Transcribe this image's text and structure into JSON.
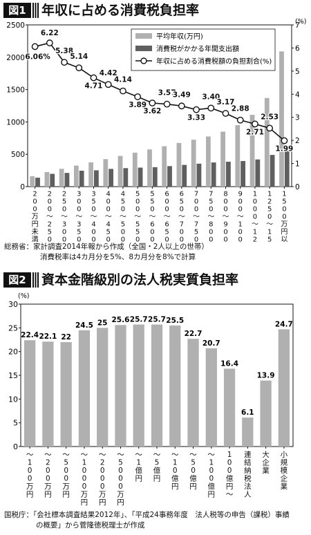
{
  "figure1": {
    "badge": "図1",
    "title": "年収に占める消費税負担率",
    "source_lines": [
      "総務省：家計調査2014年報から作成（全国・2人以上の世帯）",
      "消費税率は4カ月分を5%、8カ月分を8%で計算"
    ]
  },
  "figure2": {
    "badge": "図2",
    "title": "資本金階級別の法人税実質負担率",
    "source_lines": [
      "国税庁：「会社標本調査結果2012年」、「平成24事務年度　法人税等の申告（課税）事績",
      "の概要」から菅隆徳税理士が作成"
    ]
  },
  "chart_data": [
    {
      "type": "bar",
      "categories": [
        "200万円未満",
        "200〜250",
        "250〜300",
        "300〜350",
        "350〜400",
        "400〜450",
        "450〜500",
        "500〜550",
        "550〜600",
        "600〜650",
        "650〜700",
        "700〜750",
        "750〜800",
        "800〜900",
        "900〜1000",
        "1000〜1250",
        "1250〜1500",
        "1500万円以上"
      ],
      "category_labels_vertical": [
        "200万円未満",
        "2 0 0 〜 2 5 0",
        "2 5 0 〜 3 0 0",
        "3 0 0 〜 3 5 0",
        "3 5 0 〜 4 0 0",
        "4 0 0 〜 4 5 0",
        "4 5 0 〜 5 0 0",
        "5 0 0 〜 5 5 0",
        "5 5 0 〜 6 0 0",
        "6 0 0 〜 6 5 0",
        "6 5 0 〜 7 0 0",
        "7 0 0 〜 7 5 0",
        "7 5 0 〜 8 0 0",
        "8 0 0 〜 9 0 0",
        "9 0 0 〜 1 0 0 0",
        "1 0 0 0 〜 1 2 5 0",
        "1 2 5 0 〜 1 5 0 0",
        "1500万円以上"
      ],
      "series": [
        {
          "name": "平均年収(万円)",
          "axis": "left",
          "color": "#b0b0b0",
          "values": [
            160,
            225,
            275,
            325,
            375,
            425,
            475,
            525,
            575,
            625,
            675,
            725,
            775,
            850,
            950,
            1110,
            1370,
            2090
          ]
        },
        {
          "name": "消費税がかかる年間支出額",
          "axis": "left",
          "color": "#5f5f5f",
          "values": [
            138,
            198,
            212,
            246,
            252,
            274,
            286,
            294,
            301,
            317,
            336,
            355,
            373,
            385,
            396,
            420,
            490,
            560
          ]
        },
        {
          "name": "年収に占める消費税額の負担割合(%)",
          "axis": "right",
          "chart_type": "line",
          "color": "#111111",
          "values": [
            6.06,
            6.22,
            5.38,
            5.14,
            4.71,
            4.42,
            4.14,
            3.89,
            3.62,
            3.57,
            3.49,
            3.33,
            3.4,
            3.17,
            2.88,
            2.71,
            2.53,
            1.99
          ]
        }
      ],
      "ylim": [
        0,
        2500
      ],
      "yticks": [
        0,
        500,
        1000,
        1500,
        2000,
        2500
      ],
      "y2lim": [
        0,
        7
      ],
      "y2ticks": [
        0,
        1,
        2,
        3,
        4,
        5,
        6,
        7
      ],
      "y2unit": "(%)",
      "ratio_labels": [
        "6.06%",
        "6.22",
        "5.38",
        "5.14",
        "4.71",
        "4.42",
        "4.14",
        "3.89",
        "3.62",
        "3.57",
        "3.49",
        "3.33",
        "3.40",
        "3.17",
        "2.88",
        "2.71",
        "2.53",
        "1.99"
      ],
      "legend_position": "top-right"
    },
    {
      "type": "bar",
      "categories": [
        "〜100万円",
        "〜200万円",
        "〜500万円",
        "〜1000万円",
        "〜2000万円",
        "〜5000万円",
        "〜1億円",
        "〜5億円",
        "〜10億円",
        "50億円",
        "〜100億円",
        "100億円〜",
        "連結納税法人",
        "大企業",
        "小規模企業"
      ],
      "category_labels_vertical": [
        "〜 1 0 0 万円",
        "〜 2 0 0 万円",
        "〜 5 0 0 万円",
        "〜 1 0 0 0 万円",
        "〜 2 0 0 0 万円",
        "〜 5 0 0 0 万円",
        "〜 1 億円",
        "〜 5 億円",
        "〜 1 0 億円",
        "〜 5 0 億円",
        "〜 1 0 0 億円",
        "1 0 0 億円 〜",
        "連結納税法人",
        "大企業",
        "小規模企業"
      ],
      "values": [
        22.4,
        22.1,
        22,
        24.5,
        25,
        25.6,
        25.7,
        25.7,
        25.5,
        22.7,
        20.7,
        16.4,
        6.1,
        13.9,
        24.7
      ],
      "value_labels": [
        "22.4",
        "22.1",
        "22",
        "24.5",
        "25",
        "25.6",
        "25.7",
        "25.7",
        "25.5",
        "22.7",
        "20.7",
        "16.4",
        "6.1",
        "13.9",
        "24.7"
      ],
      "ylim": [
        0,
        30
      ],
      "yticks": [
        0,
        5,
        10,
        15,
        20,
        25,
        30
      ],
      "yunit": "(%)",
      "color": "#b0b0b0"
    }
  ]
}
